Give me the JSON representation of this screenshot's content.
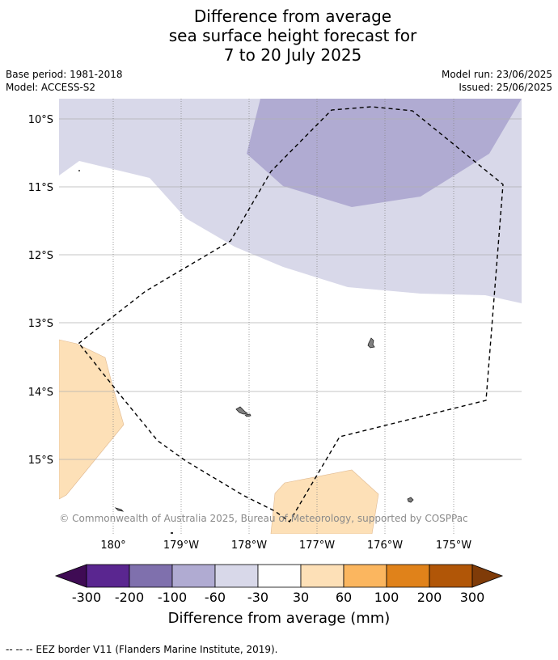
{
  "title": {
    "line1": "Difference from average",
    "line2": "sea surface height forecast for",
    "line3": "7 to 20 July 2025"
  },
  "meta": {
    "base_period": "Base period: 1981-2018",
    "model": "Model: ACCESS-S2",
    "model_run": "Model run: 23/06/2025",
    "issued": "Issued: 25/06/2025"
  },
  "map": {
    "lat_labels": [
      "10°S",
      "11°S",
      "12°S",
      "13°S",
      "14°S",
      "15°S"
    ],
    "lon_labels": [
      "180°",
      "179°W",
      "178°W",
      "177°W",
      "176°W",
      "175°W"
    ],
    "copyright": "© Commonwealth of Australia 2025, Bureau of Meteorology, supported by COSPPac",
    "colors": {
      "light_purple": "#d8d8e9",
      "mid_purple": "#b0abd2",
      "light_orange": "#fde0b7",
      "land": "#808080"
    }
  },
  "colorbar": {
    "ticks": [
      "-300",
      "-200",
      "-100",
      "-60",
      "-30",
      "30",
      "60",
      "100",
      "200",
      "300"
    ],
    "colors": [
      "#3f0b54",
      "#5a2690",
      "#7f70ad",
      "#b0abd2",
      "#d8d8e9",
      "#ffffff",
      "#fde0b7",
      "#fbb65f",
      "#e0821a",
      "#b15607",
      "#7f3b08"
    ],
    "label": "Difference from average (mm)"
  },
  "footnote": "--  --  -- EEZ border V11 (Flanders Marine Institute, 2019)."
}
